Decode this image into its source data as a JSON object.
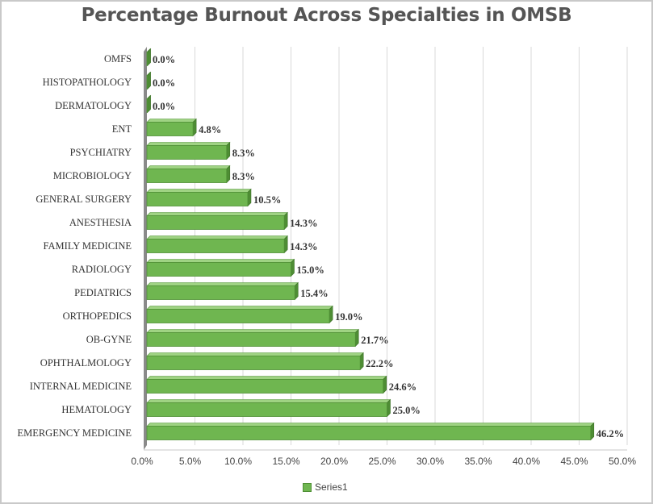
{
  "chart_data": {
    "type": "bar",
    "orientation": "horizontal",
    "title": "Percentage Burnout Across Specialties in OMSB",
    "categories": [
      "OMFS",
      "HISTOPATHOLOGY",
      "DERMATOLOGY",
      "ENT",
      "PSYCHIATRY",
      "MICROBIOLOGY",
      "GENERAL SURGERY",
      "ANESTHESIA",
      "FAMILY MEDICINE",
      "RADIOLOGY",
      "PEDIATRICS",
      "ORTHOPEDICS",
      "OB-GYNE",
      "OPHTHALMOLOGY",
      "INTERNAL MEDICINE",
      "HEMATOLOGY",
      "EMERGENCY MEDICINE"
    ],
    "series": [
      {
        "name": "Series1",
        "values": [
          0.0,
          0.0,
          0.0,
          4.8,
          8.3,
          8.3,
          10.5,
          14.3,
          14.3,
          15.0,
          15.4,
          19.0,
          21.7,
          22.2,
          24.6,
          25.0,
          46.2
        ],
        "labels": [
          "0.0%",
          "0.0%",
          "0.0%",
          "4.8%",
          "8.3%",
          "8.3%",
          "10.5%",
          "14.3%",
          "14.3%",
          "15.0%",
          "15.4%",
          "19.0%",
          "21.7%",
          "22.2%",
          "24.6%",
          "25.0%",
          "46.2%"
        ]
      }
    ],
    "x_ticks": [
      "0.0%",
      "5.0%",
      "10.0%",
      "15.0%",
      "20.0%",
      "25.0%",
      "30.0%",
      "35.0%",
      "40.0%",
      "45.0%",
      "50.0%"
    ],
    "xlim": [
      0,
      50
    ],
    "grid": true,
    "legend_position": "bottom",
    "bar_color": "#6fb650"
  }
}
